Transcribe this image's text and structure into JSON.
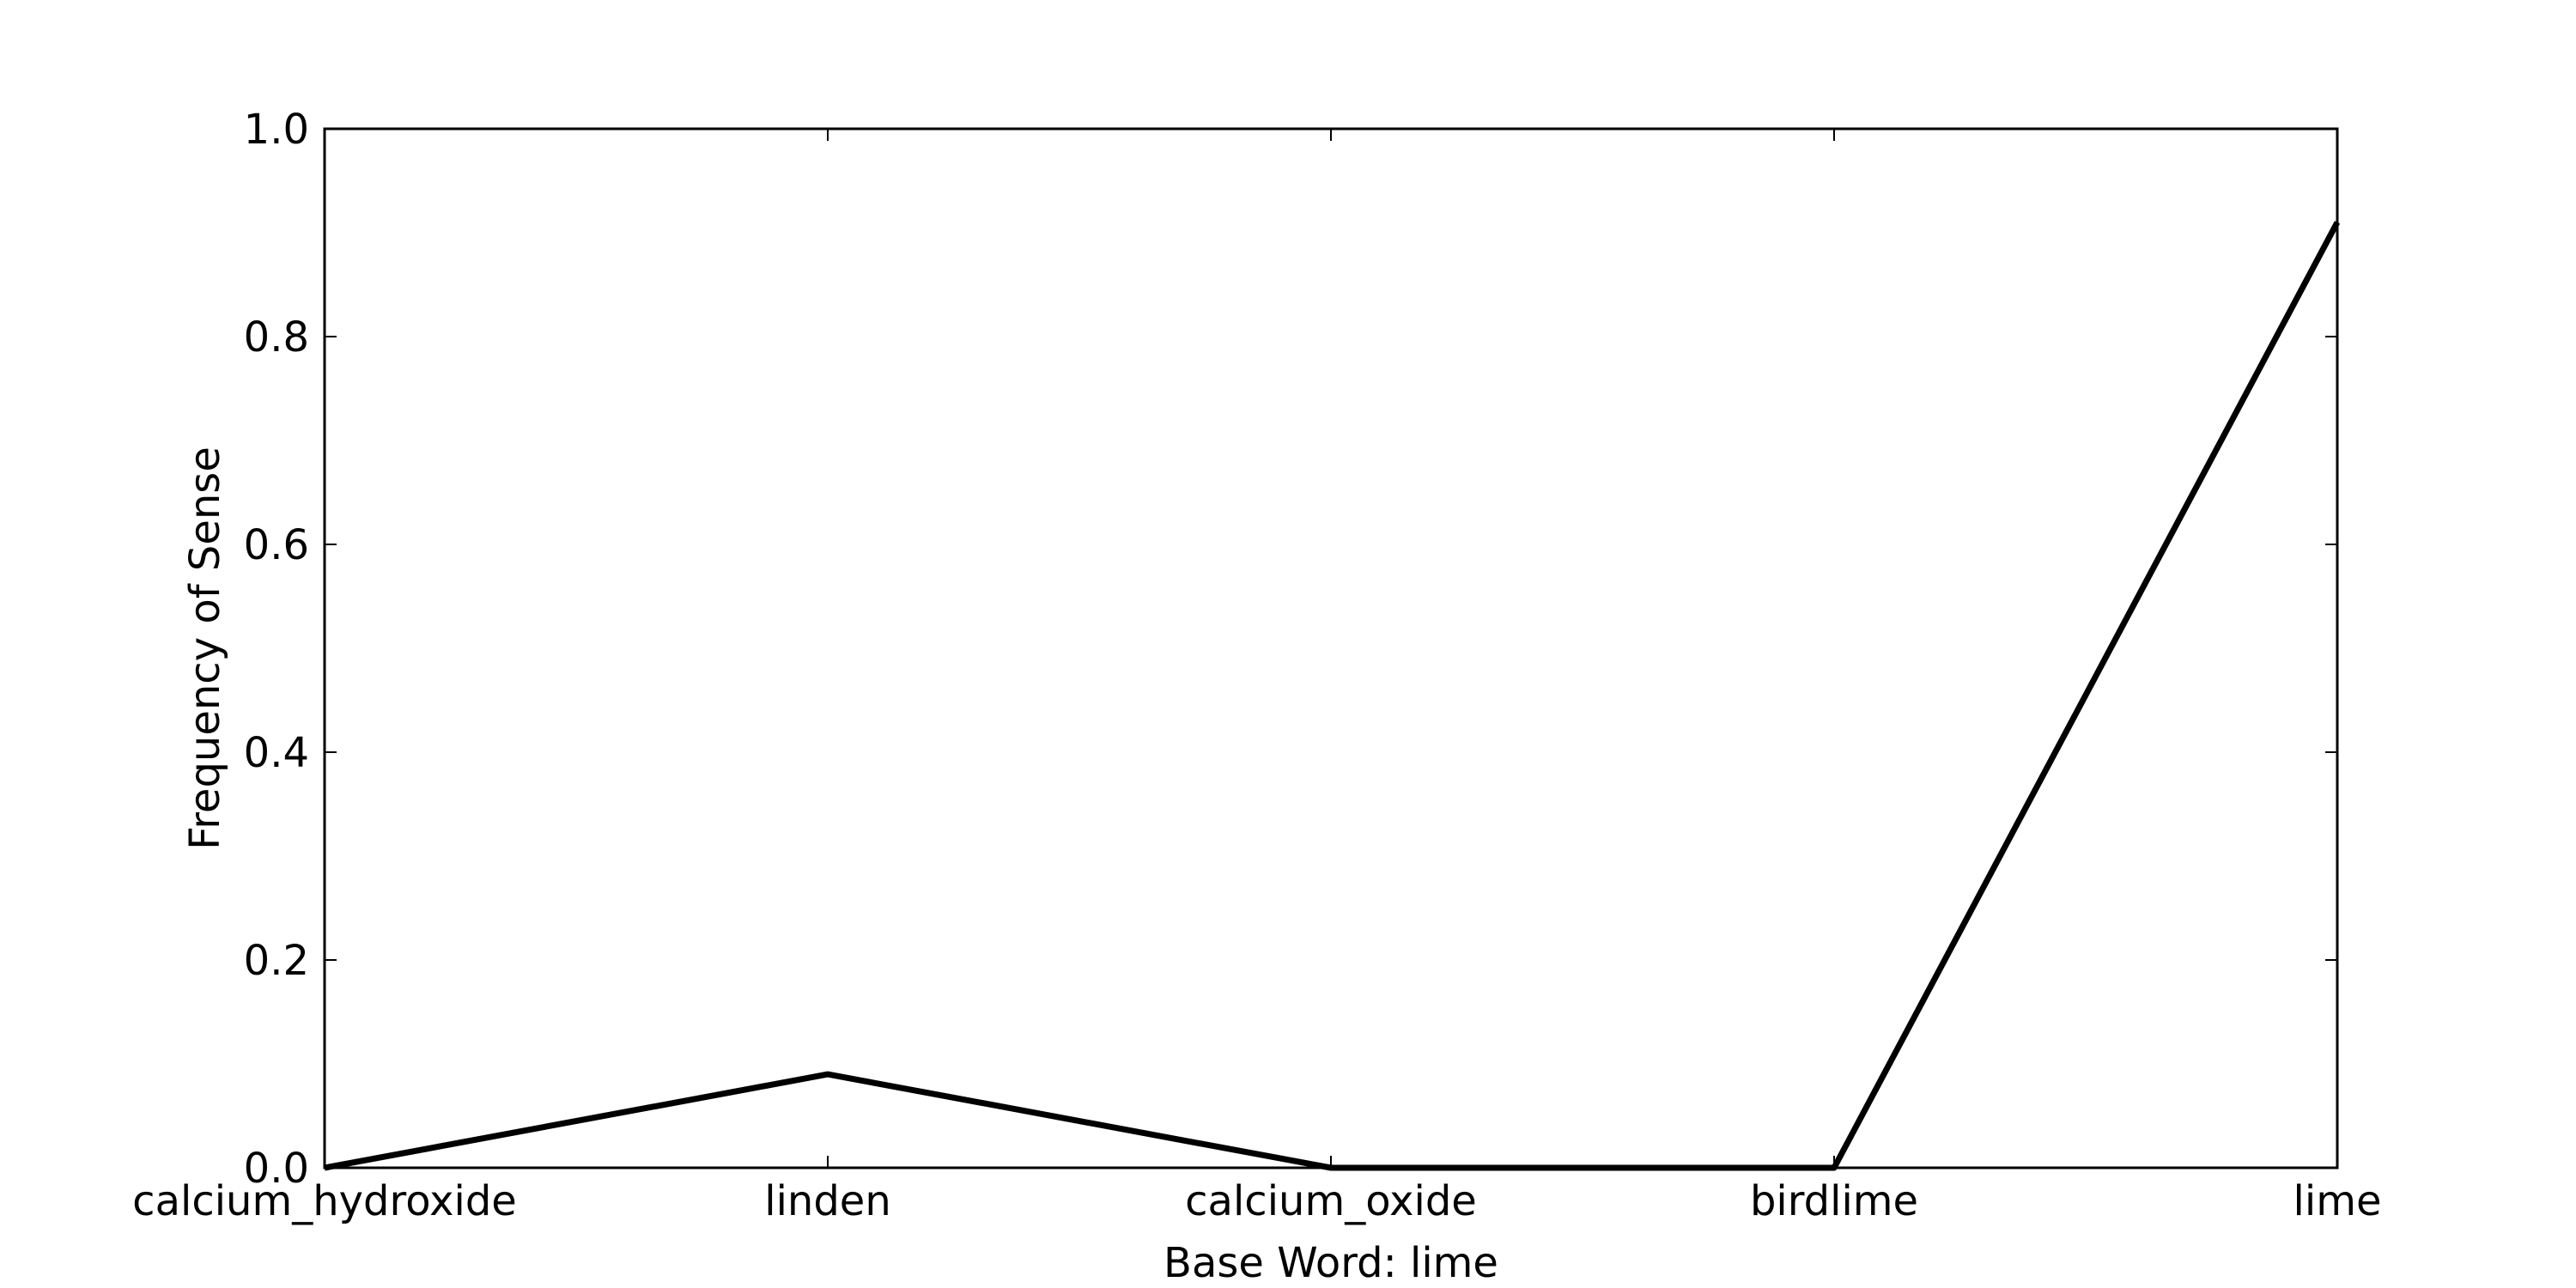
{
  "chart_data": {
    "type": "line",
    "categories": [
      "calcium_hydroxide",
      "linden",
      "calcium_oxide",
      "birdlime",
      "lime"
    ],
    "series": [
      {
        "values": [
          0.0,
          0.09,
          0.0,
          0.0,
          0.91
        ]
      }
    ],
    "xlabel": "Base Word: lime",
    "ylabel": "Frequency of Sense",
    "ylim": [
      0.0,
      1.0
    ],
    "yticks": [
      "0.0",
      "0.2",
      "0.4",
      "0.6",
      "0.8",
      "1.0"
    ],
    "grid": false,
    "line_color": "#000000"
  }
}
